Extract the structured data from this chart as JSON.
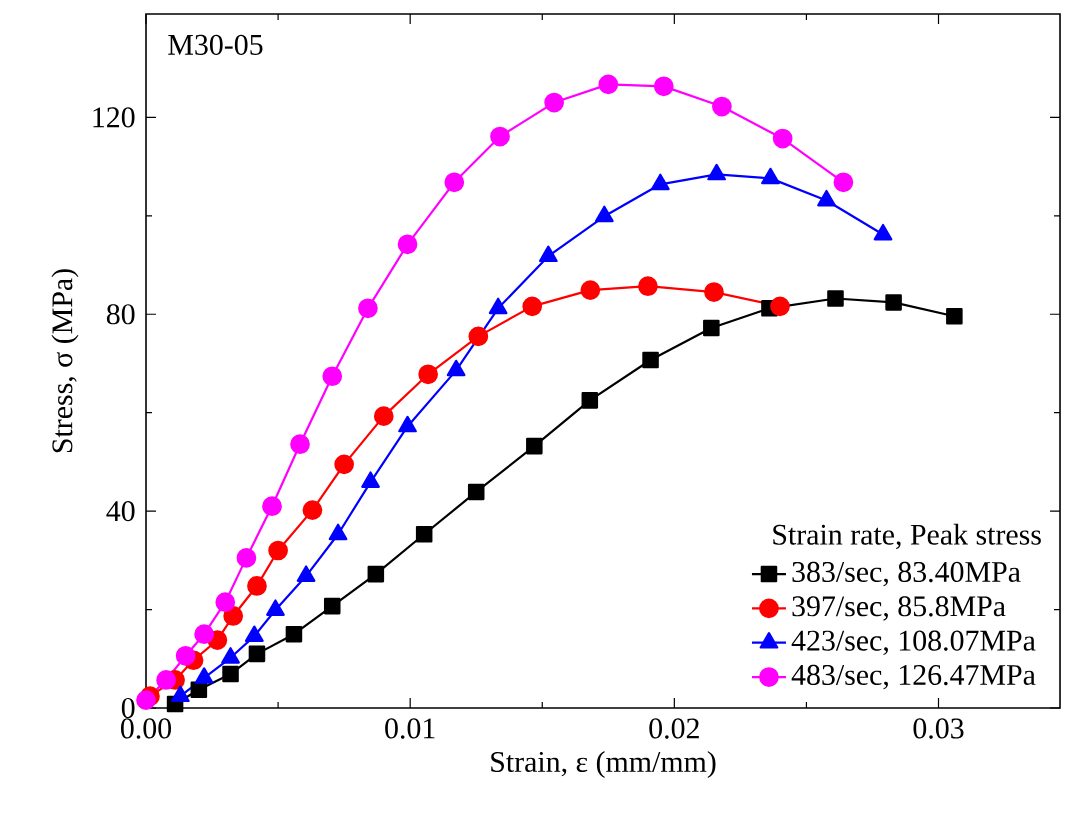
{
  "chart_data": {
    "type": "line",
    "xlabel": "Strain, ε (mm/mm)",
    "ylabel": "Stress, σ (MPa)",
    "legend_title": "Strain rate, Peak stress",
    "annotations": [
      "M30-05"
    ],
    "xlim": [
      0,
      0.0346
    ],
    "ylim": [
      0,
      141
    ],
    "xticks": [
      {
        "value": 0,
        "label": "0.00"
      },
      {
        "value": 0.01,
        "label": "0.01"
      },
      {
        "value": 0.02,
        "label": "0.02"
      },
      {
        "value": 0.03,
        "label": "0.03"
      }
    ],
    "yticks": [
      0,
      40,
      80,
      120
    ],
    "legend": "bottom right",
    "grid": false,
    "line_style": "solid",
    "series": [
      {
        "name": "383/sec, 83.40MPa",
        "color": "#000000",
        "marker": "square",
        "x": [
          0.0011,
          0.002,
          0.0032,
          0.0042,
          0.0056,
          0.00705,
          0.0087,
          0.01053,
          0.0125,
          0.0147,
          0.0168,
          0.0191,
          0.0214,
          0.0236,
          0.0261,
          0.0283,
          0.0306
        ],
        "values": [
          0.8,
          3.7,
          6.9,
          11,
          15,
          20.7,
          27.2,
          35.3,
          43.9,
          53.2,
          62.5,
          70.7,
          77.2,
          81.2,
          83.2,
          82.4,
          79.6
        ]
      },
      {
        "name": "397/sec, 85.8MPa",
        "color": "#ff0000",
        "marker": "circle",
        "x": [
          0.00015,
          0.0011,
          0.0018,
          0.0027,
          0.0033,
          0.0042,
          0.005,
          0.0063,
          0.0075,
          0.009,
          0.01068,
          0.01258,
          0.01462,
          0.01682,
          0.019,
          0.0215,
          0.024
        ],
        "values": [
          2.4,
          5.7,
          9.7,
          13.8,
          18.7,
          24.8,
          32,
          40.2,
          49.5,
          59.3,
          67.8,
          75.5,
          81.6,
          84.9,
          85.7,
          84.5,
          81.6
        ]
      },
      {
        "name": "423/sec, 108.07MPa",
        "color": "#0000ff",
        "marker": "triangle",
        "x": [
          0.0013,
          0.0022,
          0.0032,
          0.0041,
          0.0049,
          0.00606,
          0.00727,
          0.0085,
          0.0099,
          0.01174,
          0.01333,
          0.01523,
          0.01735,
          0.01947,
          0.0216,
          0.02364,
          0.02576,
          0.0279
        ],
        "values": [
          2.4,
          6.1,
          10.2,
          14.6,
          19.9,
          26.8,
          35.3,
          45.9,
          57.2,
          68.6,
          81.2,
          91.8,
          99.9,
          106.4,
          108.4,
          107.6,
          103.1,
          96.2
        ]
      },
      {
        "name": "483/sec, 126.47MPa",
        "color": "#ff00ff",
        "marker": "circle",
        "x": [
          0,
          0.00076,
          0.0015,
          0.0022,
          0.003,
          0.0038,
          0.00477,
          0.00583,
          0.00705,
          0.0084,
          0.0099,
          0.01167,
          0.0134,
          0.01545,
          0.0175,
          0.0196,
          0.0218,
          0.0241,
          0.0264
        ],
        "values": [
          1.6,
          5.7,
          10.6,
          15,
          21.5,
          30.5,
          41,
          53.6,
          67.4,
          81.2,
          94.2,
          106.8,
          116.1,
          123,
          126.7,
          126.3,
          122.2,
          115.7,
          106.8
        ]
      }
    ]
  }
}
